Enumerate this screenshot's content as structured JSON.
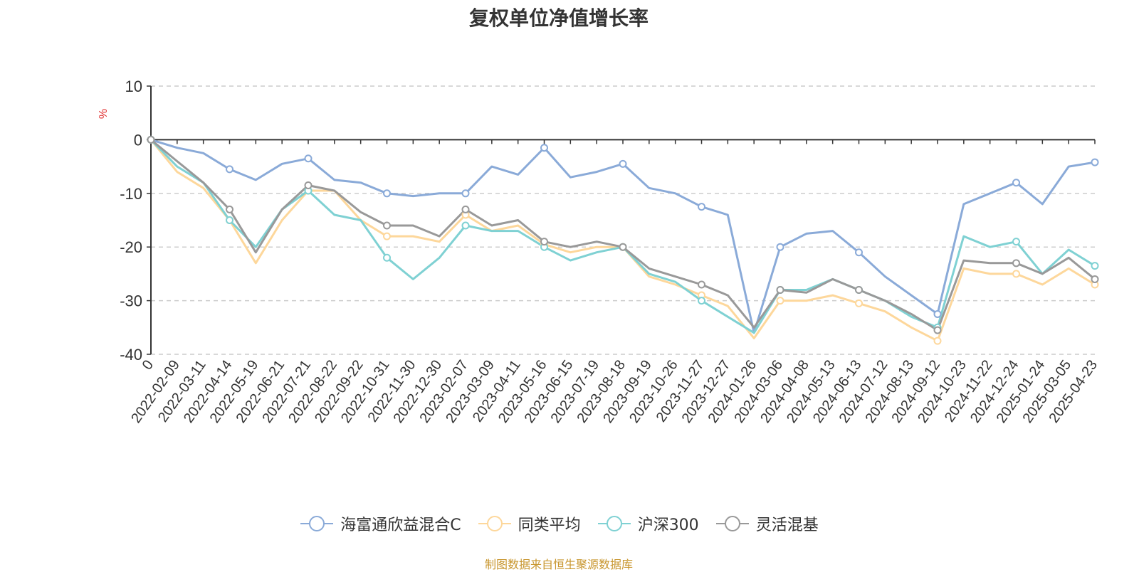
{
  "chart_data": {
    "type": "line",
    "title": "复权单位净值增长率",
    "ylabel": "%",
    "ylim": [
      -40,
      10
    ],
    "yticks": [
      10,
      0,
      -10,
      -20,
      -30,
      -40
    ],
    "grid": true,
    "legend_position": "bottom",
    "x_tick_labels": [
      "0",
      "2022-02-09",
      "2022-03-11",
      "2022-04-14",
      "2022-05-19",
      "2022-06-21",
      "2022-07-21",
      "2022-08-22",
      "2022-09-22",
      "2022-10-31",
      "2022-11-30",
      "2022-12-30",
      "2023-02-07",
      "2023-03-09",
      "2023-04-11",
      "2023-05-16",
      "2023-06-15",
      "2023-07-19",
      "2023-08-18",
      "2023-09-19",
      "2023-10-26",
      "2023-11-27",
      "2023-12-27",
      "2024-01-26",
      "2024-03-06",
      "2024-04-08",
      "2024-05-13",
      "2024-06-13",
      "2024-07-12",
      "2024-08-13",
      "2024-09-12",
      "2024-10-23",
      "2024-11-22",
      "2024-12-24",
      "2025-01-24",
      "2025-03-05",
      "2025-04-23"
    ],
    "series": [
      {
        "name": "海富通欣益混合C",
        "color": "#8aaad8",
        "values": [
          0,
          -1.5,
          -2.5,
          -5.5,
          -7.5,
          -4.5,
          -3.5,
          -7.5,
          -8,
          -10,
          -10.5,
          -10,
          -10,
          -5,
          -6.5,
          -1.5,
          -7,
          -6,
          -4.5,
          -9,
          -10,
          -12.5,
          -14,
          -36,
          -20,
          -17.5,
          -17,
          -21,
          -25.5,
          -29,
          -32.5,
          -12,
          -10,
          -8,
          -12,
          -5,
          -4.2
        ]
      },
      {
        "name": "同类平均",
        "color": "#fdd79b",
        "values": [
          0,
          -6,
          -9,
          -15,
          -23,
          -15,
          -9.5,
          -9.5,
          -15,
          -18,
          -18,
          -19,
          -14,
          -17,
          -16,
          -19.5,
          -21,
          -20,
          -20,
          -25.5,
          -27,
          -29,
          -31,
          -37,
          -30,
          -30,
          -29,
          -30.5,
          -32,
          -35,
          -37.5,
          -24,
          -25,
          -25,
          -27,
          -24,
          -27
        ]
      },
      {
        "name": "沪深300",
        "color": "#7fd1d3",
        "values": [
          0,
          -5,
          -8,
          -15,
          -20,
          -13,
          -9.5,
          -14,
          -15,
          -22,
          -26,
          -22,
          -16,
          -17,
          -17,
          -20,
          -22.5,
          -21,
          -20,
          -25,
          -26.5,
          -30,
          -33,
          -36,
          -28,
          -28,
          -26,
          -28,
          -30,
          -33,
          -35,
          -18,
          -20,
          -19,
          -25,
          -20.5,
          -23.5
        ]
      },
      {
        "name": "灵活混基",
        "color": "#999999",
        "values": [
          0,
          -4,
          -8,
          -13,
          -21,
          -13,
          -8.5,
          -9.5,
          -13.5,
          -16,
          -16,
          -18,
          -13,
          -16,
          -15,
          -19,
          -20,
          -19,
          -20,
          -24,
          -25.5,
          -27,
          -29,
          -35,
          -28,
          -28.5,
          -26,
          -28,
          -30,
          -32.5,
          -35.5,
          -22.5,
          -23,
          -23,
          -25,
          -22,
          -26
        ]
      }
    ]
  },
  "source_note": "制图数据来自恒生聚源数据库"
}
